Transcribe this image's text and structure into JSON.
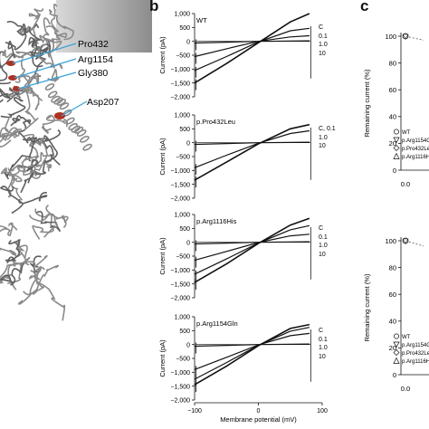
{
  "panel_b_letter": "b",
  "panel_c_letter": "c",
  "structure_labels": [
    "Pro432",
    "Arg1154",
    "Gly380",
    "Asp207"
  ],
  "colors": {
    "label_line": "#3aa3d8",
    "trace": "#111111",
    "protein": "#8a8a8a",
    "highlight": "#b03020"
  },
  "chart_data": [
    {
      "type": "line",
      "title": "WT",
      "ylabel": "Current (pA)",
      "xlabel": "",
      "ylim": [
        -2000,
        1000
      ],
      "xlim": [
        -100,
        100
      ],
      "yticks": [
        "1,000",
        "500",
        "0",
        "−500",
        "−1,000",
        "−1,500",
        "−2,000"
      ],
      "legend": [
        "C",
        "0.1",
        "1.0",
        "10"
      ],
      "series": [
        {
          "name": "C",
          "x": [
            -100,
            -50,
            0,
            50,
            80
          ],
          "y": [
            -1500,
            -800,
            -50,
            700,
            1000
          ]
        },
        {
          "name": "0.1",
          "x": [
            -100,
            -50,
            0,
            50,
            80
          ],
          "y": [
            -1050,
            -550,
            -20,
            380,
            470
          ]
        },
        {
          "name": "1.0",
          "x": [
            -100,
            -50,
            0,
            50,
            80
          ],
          "y": [
            -550,
            -270,
            0,
            160,
            200
          ]
        },
        {
          "name": "10",
          "x": [
            -100,
            -50,
            0,
            50,
            80
          ],
          "y": [
            -60,
            -30,
            0,
            10,
            20
          ]
        }
      ]
    },
    {
      "type": "line",
      "title": "p.Pro432Leu",
      "ylabel": "Current (pA)",
      "xlabel": "",
      "ylim": [
        -2000,
        1000
      ],
      "xlim": [
        -100,
        100
      ],
      "yticks": [
        "1,000",
        "500",
        "0",
        "−500",
        "−1,000",
        "−1,500",
        "−2,000"
      ],
      "legend": [
        "C, 0.1",
        "1.0",
        "10"
      ],
      "series": [
        {
          "name": "C, 0.1",
          "x": [
            -100,
            -50,
            0,
            50,
            80
          ],
          "y": [
            -1350,
            -700,
            -40,
            500,
            650
          ]
        },
        {
          "name": "1.0",
          "x": [
            -100,
            -50,
            0,
            50,
            80
          ],
          "y": [
            -900,
            -450,
            -20,
            330,
            430
          ]
        },
        {
          "name": "10",
          "x": [
            -100,
            -50,
            0,
            50,
            80
          ],
          "y": [
            -60,
            -30,
            0,
            10,
            20
          ]
        }
      ]
    },
    {
      "type": "line",
      "title": "p.Arg1116His",
      "ylabel": "Current (pA)",
      "xlabel": "",
      "ylim": [
        -2000,
        1000
      ],
      "xlim": [
        -100,
        100
      ],
      "yticks": [
        "1,000",
        "500",
        "0",
        "−500",
        "−1,000",
        "−1,500",
        "−2,000"
      ],
      "legend": [
        "C",
        "0.1",
        "1.0",
        "10"
      ],
      "series": [
        {
          "name": "C",
          "x": [
            -100,
            -50,
            0,
            50,
            80
          ],
          "y": [
            -1450,
            -780,
            -40,
            620,
            860
          ]
        },
        {
          "name": "0.1",
          "x": [
            -100,
            -50,
            0,
            50,
            80
          ],
          "y": [
            -1150,
            -600,
            -30,
            450,
            600
          ]
        },
        {
          "name": "1.0",
          "x": [
            -100,
            -50,
            0,
            50,
            80
          ],
          "y": [
            -650,
            -330,
            -10,
            230,
            290
          ]
        },
        {
          "name": "10",
          "x": [
            -100,
            -50,
            0,
            50,
            80
          ],
          "y": [
            -60,
            -30,
            0,
            10,
            20
          ]
        }
      ]
    },
    {
      "type": "line",
      "title": "p.Arg1154Gln",
      "ylabel": "Current (pA)",
      "xlabel": "Membrane potential (mV)",
      "ylim": [
        -2000,
        1000
      ],
      "xlim": [
        -100,
        100
      ],
      "xticks": [
        "−100",
        "0",
        "100"
      ],
      "yticks": [
        "1,000",
        "500",
        "0",
        "−500",
        "−1,000",
        "−1,500",
        "−2,000"
      ],
      "legend": [
        "C",
        "0.1",
        "1.0",
        "10"
      ],
      "series": [
        {
          "name": "C",
          "x": [
            -100,
            -50,
            0,
            50,
            80
          ],
          "y": [
            -1450,
            -780,
            -40,
            580,
            720
          ]
        },
        {
          "name": "0.1",
          "x": [
            -100,
            -50,
            0,
            50,
            80
          ],
          "y": [
            -1250,
            -650,
            -30,
            480,
            620
          ]
        },
        {
          "name": "1.0",
          "x": [
            -100,
            -50,
            0,
            50,
            80
          ],
          "y": [
            -900,
            -460,
            -15,
            320,
            400
          ]
        },
        {
          "name": "10",
          "x": [
            -100,
            -50,
            0,
            50,
            80
          ],
          "y": [
            -60,
            -30,
            0,
            10,
            20
          ]
        }
      ]
    },
    {
      "type": "line",
      "ylabel": "Remaining current (%)",
      "xlabel": "",
      "ylim": [
        0,
        100
      ],
      "yticks": [
        "100",
        "80",
        "60",
        "40",
        "20",
        "0"
      ],
      "xticks": [
        "0.0"
      ],
      "legend": [
        "WT",
        "p.Arg1154G",
        "p.Pro432Le",
        "p.Arg1116H"
      ],
      "series": [
        {
          "marker": "circle",
          "x": [
            0.0,
            0.5
          ],
          "y": [
            100,
            97
          ]
        }
      ]
    },
    {
      "type": "line",
      "ylabel": "Remaining current (%)",
      "xlabel": "",
      "ylim": [
        0,
        100
      ],
      "yticks": [
        "100",
        "80",
        "60",
        "40",
        "20",
        "0"
      ],
      "xticks": [
        "0.0"
      ],
      "legend": [
        "WT",
        "p.Arg1154G",
        "p.Pro432Le",
        "p.Arg1116H"
      ],
      "series": [
        {
          "marker": "circle",
          "x": [
            0.0,
            0.5
          ],
          "y": [
            100,
            96
          ]
        }
      ]
    }
  ]
}
